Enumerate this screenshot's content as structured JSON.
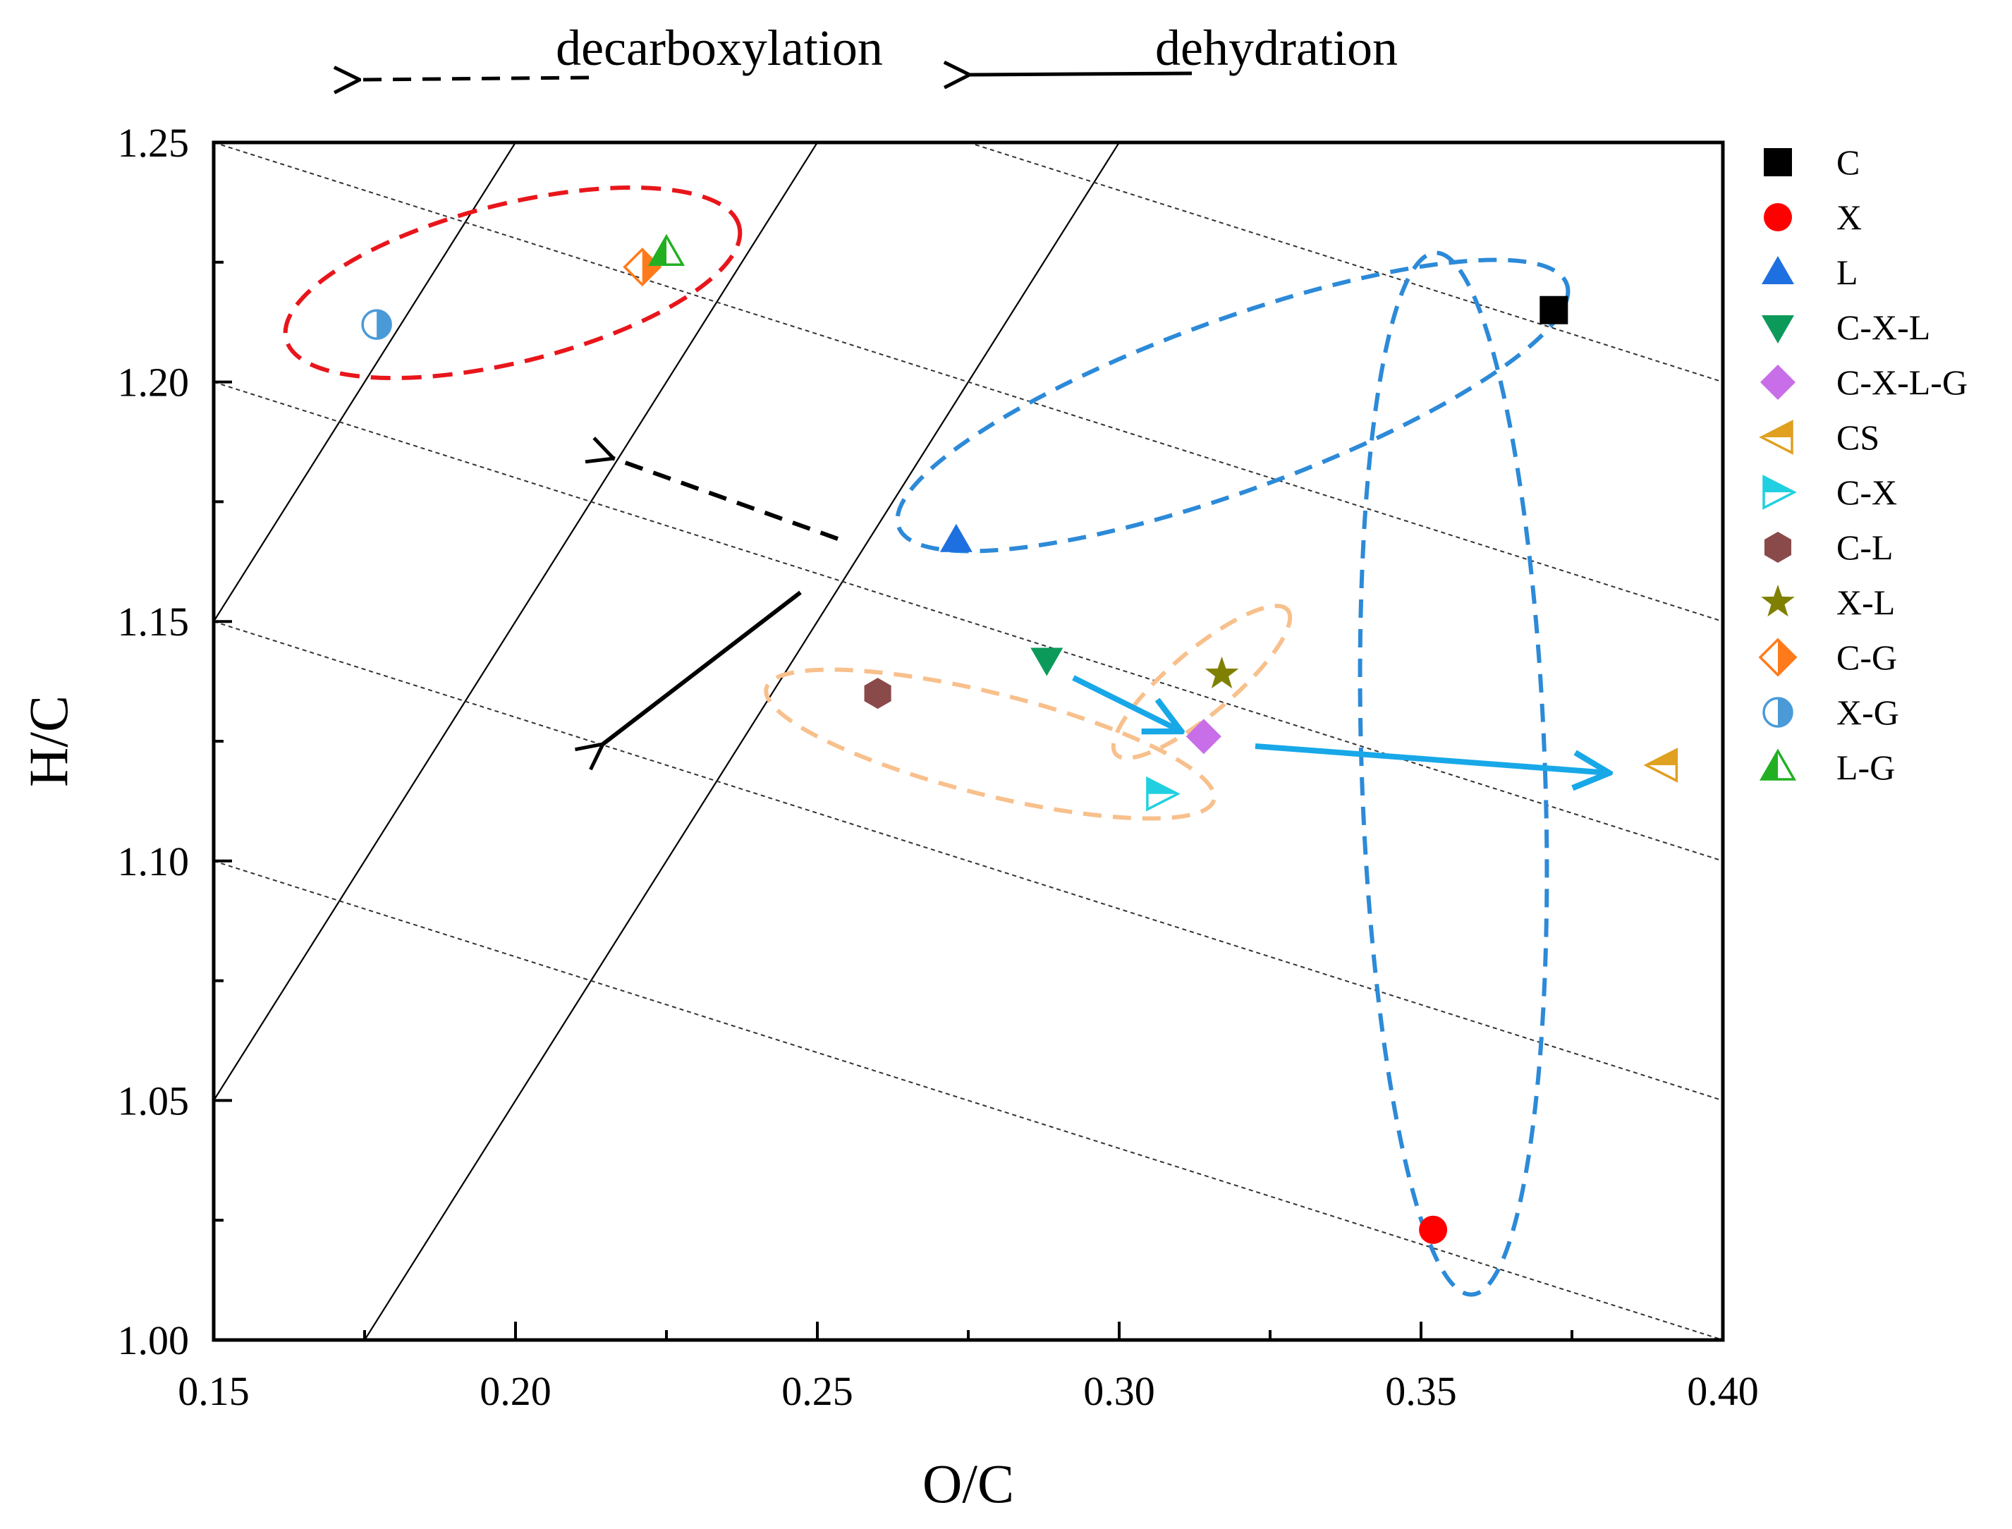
{
  "chart_data": {
    "type": "scatter",
    "title": "",
    "xlabel": "O/C",
    "ylabel": "H/C",
    "xlim": [
      0.15,
      0.4
    ],
    "ylim": [
      1.0,
      1.25
    ],
    "xticks": [
      "0.15",
      "0.20",
      "0.25",
      "0.30",
      "0.35",
      "0.40"
    ],
    "yticks": [
      "1.00",
      "1.05",
      "1.10",
      "1.15",
      "1.20",
      "1.25"
    ],
    "grid": false,
    "legend_position": "right",
    "annotations": [
      "decarboxylation",
      "dehydration"
    ],
    "series": [
      {
        "name": "C",
        "x": 0.372,
        "y": 1.215,
        "marker": "square",
        "color": "#000000"
      },
      {
        "name": "X",
        "x": 0.352,
        "y": 1.023,
        "marker": "circle",
        "color": "#ff0000"
      },
      {
        "name": "L",
        "x": 0.273,
        "y": 1.167,
        "marker": "triangle-up",
        "color": "#1e6fe0"
      },
      {
        "name": "C-X-L",
        "x": 0.288,
        "y": 1.142,
        "marker": "triangle-down",
        "color": "#0c9a5a"
      },
      {
        "name": "C-X-L-G",
        "x": 0.314,
        "y": 1.126,
        "marker": "diamond",
        "color": "#c86ee8"
      },
      {
        "name": "CS",
        "x": 0.39,
        "y": 1.12,
        "marker": "triangle-left-half",
        "color": "#e0a020"
      },
      {
        "name": "C-X",
        "x": 0.307,
        "y": 1.114,
        "marker": "triangle-right-half",
        "color": "#20d0e0"
      },
      {
        "name": "C-L",
        "x": 0.26,
        "y": 1.135,
        "marker": "hexagon",
        "color": "#8b4a4a"
      },
      {
        "name": "X-L",
        "x": 0.317,
        "y": 1.139,
        "marker": "star",
        "color": "#808000"
      },
      {
        "name": "C-G",
        "x": 0.221,
        "y": 1.224,
        "marker": "diamond-half",
        "color": "#ff7a1a"
      },
      {
        "name": "X-G",
        "x": 0.177,
        "y": 1.212,
        "marker": "circle-half",
        "color": "#4a9ad8"
      },
      {
        "name": "L-G",
        "x": 0.225,
        "y": 1.227,
        "marker": "triangle-up-half",
        "color": "#22b022"
      }
    ],
    "dehydration_lines": {
      "slope": 2,
      "intercepts": [
        0.65,
        0.75,
        0.85,
        0.95,
        1.05,
        1.15
      ]
    },
    "decarboxylation_lines": {
      "slope": -0.4,
      "intercepts": [
        1.16,
        1.21,
        1.26,
        1.31,
        1.36
      ]
    },
    "colors": {
      "outline_red": "#e8161b",
      "outline_blue": "#2c8ad8",
      "outline_orange": "#f8c08c",
      "arrow_blue": "#18a8e8"
    }
  }
}
